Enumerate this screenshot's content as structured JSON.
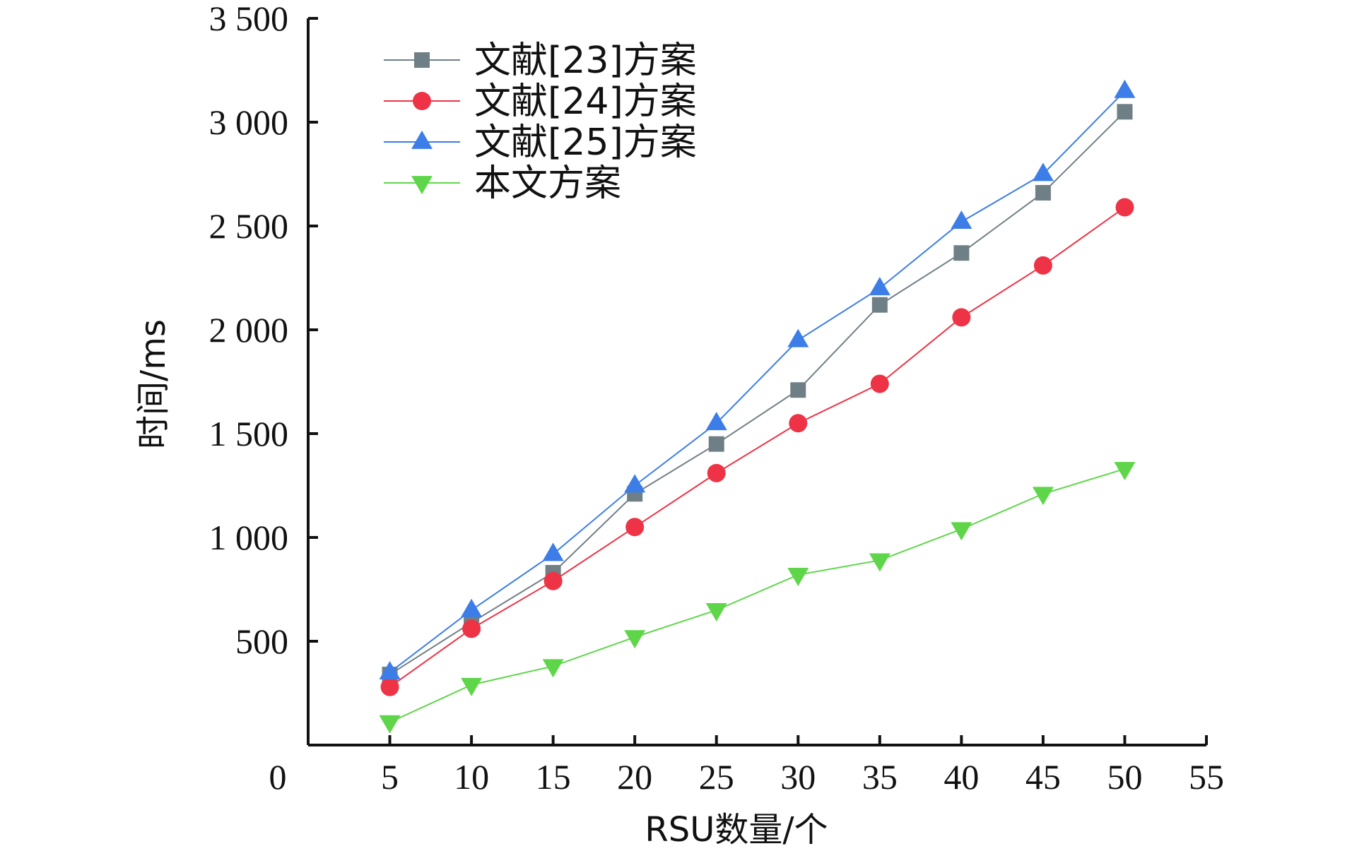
{
  "chart_data": {
    "type": "line",
    "xlabel": "RSU数量/个",
    "ylabel": "时间/ms",
    "x_origin_label": "0",
    "xlim": [
      0,
      55
    ],
    "ylim": [
      0,
      3500
    ],
    "x_ticks": [
      5,
      10,
      15,
      20,
      25,
      30,
      35,
      40,
      45,
      50,
      55
    ],
    "y_ticks": [
      500,
      1000,
      1500,
      2000,
      2500,
      3000,
      3500
    ],
    "y_tick_labels": [
      "500",
      "1 000",
      "1 500",
      "2 000",
      "2 500",
      "3 000",
      "3 500"
    ],
    "x": [
      5,
      10,
      15,
      20,
      25,
      30,
      35,
      40,
      45,
      50
    ],
    "legend_position": "top-left",
    "grid": false,
    "series": [
      {
        "name": "文献[23]方案",
        "color": "#6f7f86",
        "marker": "square",
        "values": [
          340,
          590,
          830,
          1210,
          1450,
          1710,
          2120,
          2370,
          2660,
          3050
        ]
      },
      {
        "name": "文献[24]方案",
        "color": "#ee3346",
        "marker": "circle",
        "values": [
          280,
          560,
          790,
          1050,
          1310,
          1550,
          1740,
          2060,
          2310,
          2590
        ]
      },
      {
        "name": "文献[25]方案",
        "color": "#3c7de8",
        "marker": "triangle-up",
        "values": [
          350,
          650,
          920,
          1250,
          1550,
          1950,
          2200,
          2520,
          2750,
          3150
        ]
      },
      {
        "name": "本文方案",
        "color": "#5fd64a",
        "marker": "triangle-down",
        "values": [
          110,
          290,
          380,
          520,
          650,
          820,
          890,
          1040,
          1210,
          1330
        ]
      }
    ]
  }
}
